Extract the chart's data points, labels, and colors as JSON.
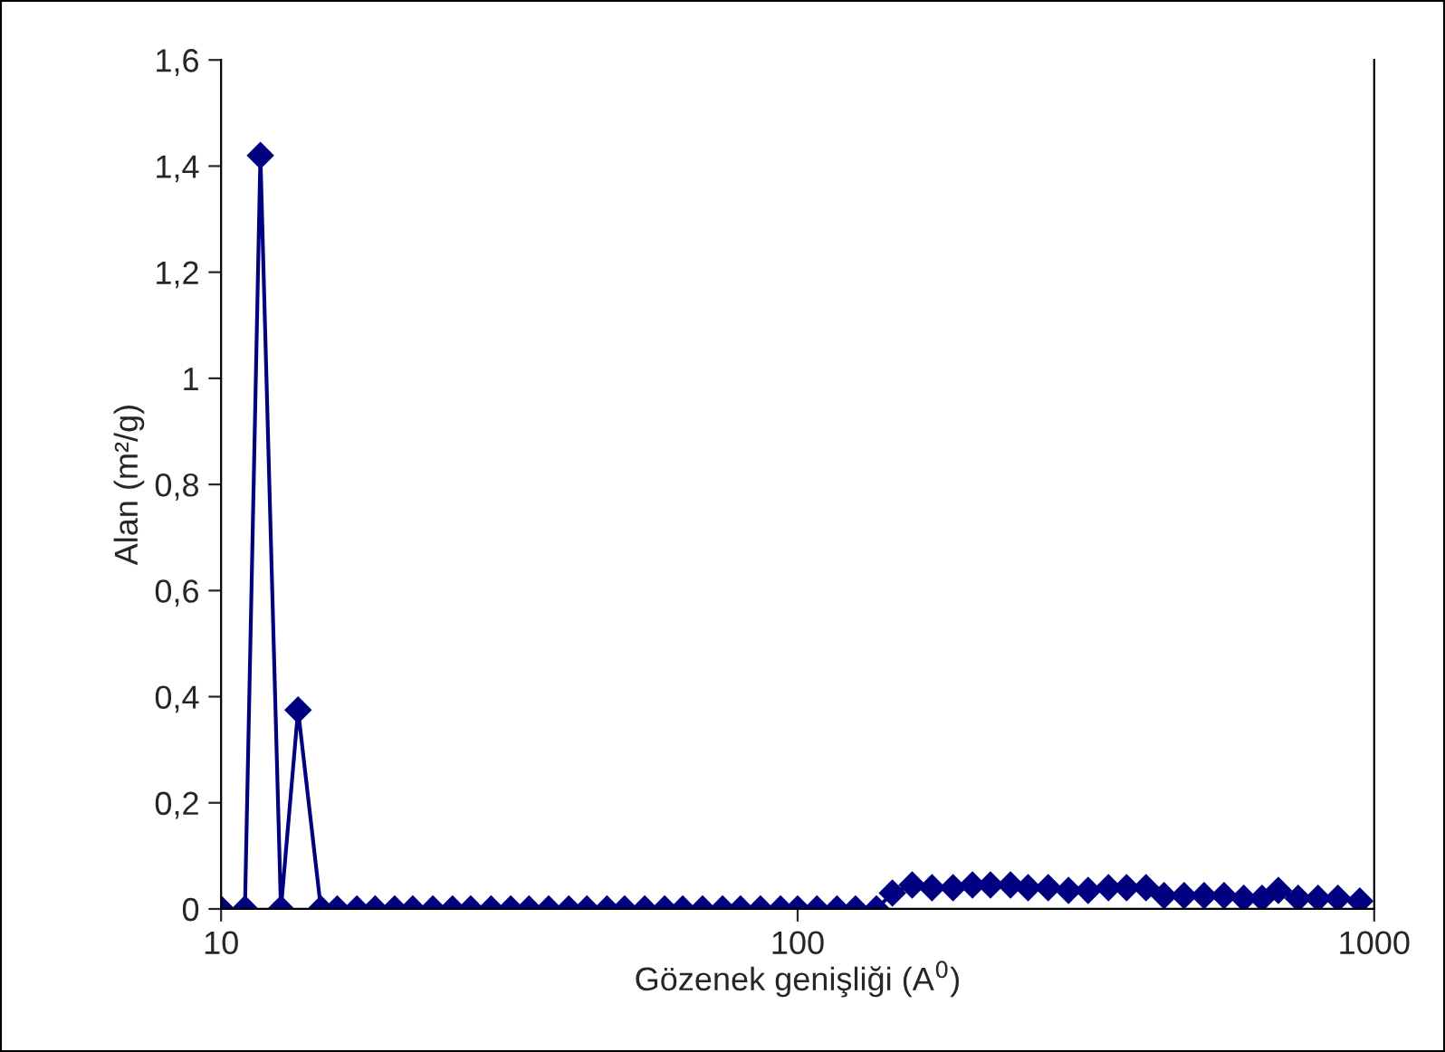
{
  "chart_data": {
    "type": "line",
    "xlabel": "Gözenek genişliği (A$^{0}$)",
    "ylabel": "Alan (m²/g)",
    "log": "x",
    "xlim": [
      10,
      1000
    ],
    "xticks": [
      10,
      100,
      1000
    ],
    "ylim": [
      0,
      1.6
    ],
    "yticks": [
      0,
      {
        "value": 0.2,
        "label": "0,2"
      },
      {
        "value": 0.4,
        "label": "0,4"
      },
      {
        "value": 0.6,
        "label": "0,6"
      },
      {
        "value": 0.8,
        "label": "0,8"
      },
      1,
      {
        "value": 1.2,
        "label": "1,2"
      },
      {
        "value": 1.4,
        "label": "1,4"
      },
      {
        "value": 1.6,
        "label": "1,6"
      }
    ],
    "grid": false,
    "legend": false,
    "marker": "diamond",
    "line_style": "solid",
    "series": [
      {
        "color": "#000080",
        "x": [
          10,
          11.0,
          11.7,
          12.7,
          13.6,
          14.9,
          15.9,
          17.2,
          18.5,
          20.0,
          21.5,
          23.3,
          25.2,
          27.1,
          29.4,
          31.8,
          34.2,
          37.0,
          40.1,
          43.1,
          46.7,
          50.1,
          54.3,
          58.8,
          63.2,
          68.4,
          74.1,
          79.6,
          86.2,
          93.4,
          100,
          108,
          117,
          126,
          137,
          146,
          158,
          171,
          186,
          201,
          216,
          234,
          251,
          272,
          295,
          319,
          346,
          372,
          402,
          432,
          468,
          507,
          549,
          594,
          639,
          682,
          738,
          799,
          865,
          944
        ],
        "values": [
          0,
          0,
          1.42,
          0,
          0.375,
          0,
          0,
          0,
          0,
          0,
          0,
          0,
          0,
          0,
          0,
          0,
          0,
          0,
          0,
          0,
          0,
          0,
          0,
          0,
          0,
          0,
          0,
          0,
          0,
          0,
          0,
          0,
          0,
          0,
          0,
          0.03,
          0.045,
          0.04,
          0.04,
          0.045,
          0.045,
          0.045,
          0.04,
          0.04,
          0.035,
          0.035,
          0.04,
          0.04,
          0.04,
          0.025,
          0.025,
          0.025,
          0.025,
          0.02,
          0.02,
          0.035,
          0.02,
          0.02,
          0.02,
          0.015
        ]
      }
    ]
  }
}
